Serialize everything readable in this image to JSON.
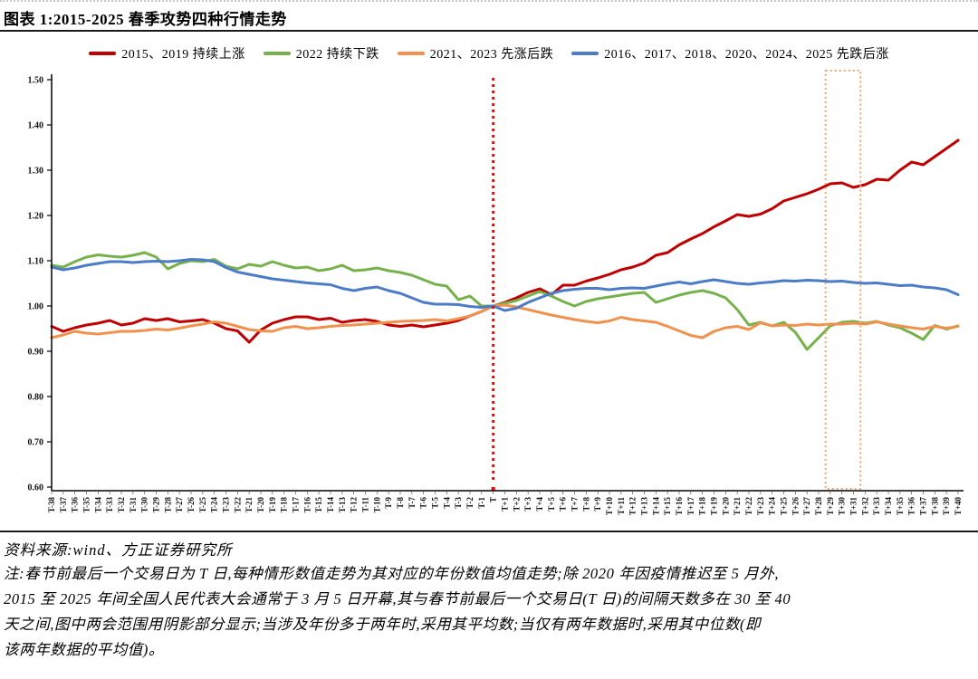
{
  "figure": {
    "title": "图表 1:2015-2025 春季攻势四种行情走势",
    "source": "资料来源:wind、方正证券研究所",
    "note_lines": [
      "注:春节前最后一个交易日为 T 日,每种情形数值走势为其对应的年份数值均值走势;除 2020 年因疫情推迟至 5 月外,",
      "2015 至 2025 年间全国人民代表大会通常于 3 月 5 日开幕,其与春节前最后一个交易日(T 日)的间隔天数多在 30 至 40",
      "天之间,图中两会范围用阴影部分显示;当涉及年份多于两年时,采用其平均数;当仅有两年数据时,采用其中位数(即",
      "该两年数据的平均值)。"
    ]
  },
  "chart_data": {
    "type": "line",
    "title": "2015-2025 春季攻势四种行情走势",
    "xlabel": "",
    "ylabel": "",
    "ylim": [
      0.6,
      1.5
    ],
    "y_ticks": [
      0.6,
      0.7,
      0.8,
      0.9,
      1.0,
      1.1,
      1.2,
      1.3,
      1.4,
      1.5
    ],
    "grid": false,
    "legend_position": "top",
    "event_line": {
      "x": "T",
      "color": "#ff0000",
      "style": "dotted"
    },
    "highlight_box": {
      "x_start": "T+29",
      "x_end": "T+32",
      "color": "#f4a76f",
      "style": "dashed",
      "meaning": "两会范围"
    },
    "x_categories": [
      "T-38",
      "T-37",
      "T-36",
      "T-35",
      "T-34",
      "T-33",
      "T-32",
      "T-31",
      "T-30",
      "T-29",
      "T-28",
      "T-27",
      "T-26",
      "T-25",
      "T-24",
      "T-23",
      "T-22",
      "T-21",
      "T-20",
      "T-19",
      "T-18",
      "T-17",
      "T-16",
      "T-15",
      "T-14",
      "T-13",
      "T-12",
      "T-11",
      "T-10",
      "T-9",
      "T-8",
      "T-7",
      "T-6",
      "T-5",
      "T-4",
      "T-3",
      "T-2",
      "T-1",
      "T",
      "T+1",
      "T+2",
      "T+3",
      "T+4",
      "T+5",
      "T+6",
      "T+7",
      "T+8",
      "T+9",
      "T+10",
      "T+11",
      "T+12",
      "T+13",
      "T+14",
      "T+15",
      "T+16",
      "T+17",
      "T+18",
      "T+19",
      "T+20",
      "T+21",
      "T+22",
      "T+23",
      "T+24",
      "T+25",
      "T+26",
      "T+27",
      "T+28",
      "T+29",
      "T+30",
      "T+31",
      "T+32",
      "T+33",
      "T+34",
      "T+35",
      "T+36",
      "T+37",
      "T+38",
      "T+39",
      "T+40"
    ],
    "series": [
      {
        "name": "2015、2019 持续上涨",
        "color": "#c00000",
        "values": [
          0.955,
          0.944,
          0.952,
          0.958,
          0.962,
          0.968,
          0.958,
          0.962,
          0.972,
          0.968,
          0.972,
          0.965,
          0.967,
          0.97,
          0.962,
          0.95,
          0.945,
          0.92,
          0.947,
          0.962,
          0.97,
          0.976,
          0.976,
          0.97,
          0.973,
          0.964,
          0.968,
          0.97,
          0.966,
          0.958,
          0.955,
          0.958,
          0.954,
          0.958,
          0.962,
          0.968,
          0.978,
          0.988,
          1.0,
          1.008,
          1.018,
          1.03,
          1.038,
          1.025,
          1.046,
          1.046,
          1.055,
          1.062,
          1.07,
          1.08,
          1.086,
          1.095,
          1.112,
          1.118,
          1.135,
          1.148,
          1.16,
          1.175,
          1.188,
          1.202,
          1.198,
          1.203,
          1.215,
          1.232,
          1.24,
          1.248,
          1.258,
          1.27,
          1.272,
          1.262,
          1.268,
          1.28,
          1.278,
          1.3,
          1.318,
          1.312,
          1.33,
          1.348,
          1.366
        ]
      },
      {
        "name": "2022 持续下跌",
        "color": "#76b14c",
        "values": [
          1.09,
          1.086,
          1.098,
          1.108,
          1.113,
          1.11,
          1.108,
          1.112,
          1.118,
          1.108,
          1.082,
          1.094,
          1.1,
          1.098,
          1.103,
          1.088,
          1.082,
          1.092,
          1.088,
          1.098,
          1.09,
          1.084,
          1.086,
          1.078,
          1.082,
          1.09,
          1.078,
          1.08,
          1.084,
          1.078,
          1.074,
          1.068,
          1.058,
          1.048,
          1.044,
          1.014,
          1.022,
          1.0,
          1.0,
          1.006,
          1.012,
          1.022,
          1.032,
          1.022,
          1.01,
          1.0,
          1.01,
          1.016,
          1.02,
          1.024,
          1.028,
          1.03,
          1.008,
          1.016,
          1.024,
          1.03,
          1.034,
          1.028,
          1.018,
          0.992,
          0.958,
          0.964,
          0.956,
          0.964,
          0.942,
          0.904,
          0.93,
          0.956,
          0.964,
          0.966,
          0.962,
          0.966,
          0.958,
          0.952,
          0.94,
          0.926,
          0.957,
          0.949,
          0.956
        ]
      },
      {
        "name": "2021、2023 先涨后跌",
        "color": "#f0924e",
        "values": [
          0.93,
          0.936,
          0.944,
          0.94,
          0.938,
          0.941,
          0.944,
          0.944,
          0.946,
          0.949,
          0.947,
          0.951,
          0.956,
          0.96,
          0.965,
          0.962,
          0.955,
          0.948,
          0.945,
          0.944,
          0.952,
          0.955,
          0.95,
          0.952,
          0.955,
          0.957,
          0.958,
          0.96,
          0.962,
          0.964,
          0.966,
          0.967,
          0.968,
          0.97,
          0.967,
          0.972,
          0.978,
          0.988,
          1.0,
          1.002,
          0.998,
          0.992,
          0.986,
          0.98,
          0.975,
          0.97,
          0.966,
          0.963,
          0.967,
          0.975,
          0.97,
          0.967,
          0.964,
          0.955,
          0.945,
          0.935,
          0.93,
          0.944,
          0.952,
          0.955,
          0.948,
          0.963,
          0.956,
          0.958,
          0.957,
          0.96,
          0.958,
          0.96,
          0.96,
          0.962,
          0.96,
          0.965,
          0.96,
          0.956,
          0.952,
          0.949,
          0.955,
          0.951,
          0.955
        ]
      },
      {
        "name": "2016、2017、2018、2020、2024、2025 先跌后涨",
        "color": "#4c7cc8",
        "values": [
          1.086,
          1.08,
          1.084,
          1.09,
          1.094,
          1.098,
          1.098,
          1.096,
          1.098,
          1.099,
          1.098,
          1.1,
          1.103,
          1.102,
          1.098,
          1.085,
          1.075,
          1.07,
          1.065,
          1.06,
          1.057,
          1.054,
          1.051,
          1.049,
          1.047,
          1.039,
          1.034,
          1.039,
          1.042,
          1.034,
          1.028,
          1.018,
          1.008,
          1.004,
          1.004,
          1.003,
          0.999,
          0.997,
          1.0,
          0.99,
          0.995,
          1.008,
          1.018,
          1.028,
          1.034,
          1.037,
          1.039,
          1.039,
          1.036,
          1.039,
          1.04,
          1.039,
          1.044,
          1.049,
          1.053,
          1.049,
          1.054,
          1.058,
          1.054,
          1.05,
          1.048,
          1.051,
          1.053,
          1.056,
          1.055,
          1.057,
          1.056,
          1.054,
          1.055,
          1.052,
          1.05,
          1.051,
          1.048,
          1.045,
          1.046,
          1.042,
          1.04,
          1.036,
          1.025
        ]
      }
    ]
  }
}
